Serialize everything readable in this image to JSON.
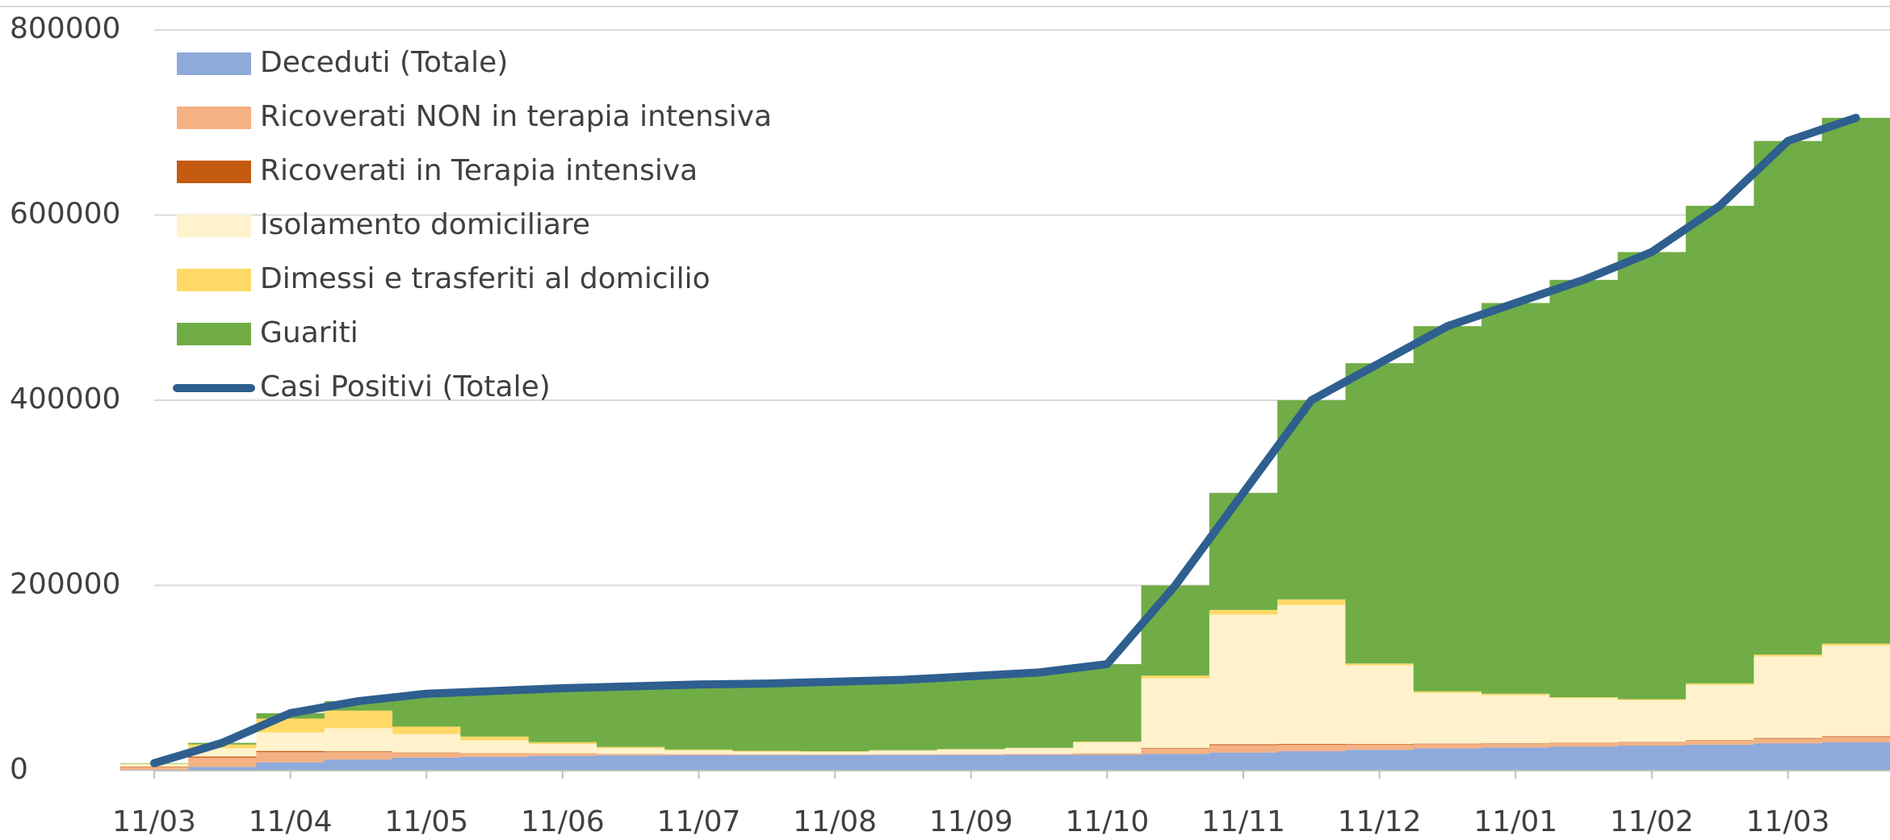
{
  "chart_data": {
    "type": "bar",
    "categories": [
      "11/03",
      null,
      "11/04",
      null,
      "11/05",
      null,
      "11/06",
      null,
      "11/07",
      null,
      "11/08",
      null,
      "11/09",
      null,
      "11/10",
      null,
      "11/11",
      null,
      "11/12",
      null,
      "11/01",
      null,
      "11/02",
      null,
      "11/03",
      null
    ],
    "ylim": [
      0,
      800000
    ],
    "yticks": [
      0,
      200000,
      400000,
      600000,
      800000
    ],
    "grid": true,
    "stacked": true,
    "legend": "top-left",
    "series": [
      {
        "name": "Deceduti (Totale)",
        "color": "#8eaadb",
        "values": [
          500,
          4000,
          9000,
          12000,
          14000,
          15000,
          16000,
          16500,
          16700,
          16800,
          16800,
          16900,
          16900,
          17000,
          17000,
          18000,
          19500,
          21000,
          22500,
          24000,
          25000,
          26000,
          27000,
          28000,
          29500,
          30500
        ]
      },
      {
        "name": "Ricoverati NON in terapia intensiva",
        "color": "#f4b183",
        "values": [
          3500,
          10000,
          11000,
          8000,
          5000,
          3500,
          2500,
          1500,
          1000,
          700,
          500,
          600,
          800,
          1000,
          1500,
          6000,
          8000,
          7000,
          5500,
          4500,
          4000,
          3800,
          3700,
          4200,
          5000,
          5800
        ]
      },
      {
        "name": "Ricoverati in Terapia intensiva",
        "color": "#c55a11",
        "values": [
          500,
          1200,
          1200,
          800,
          500,
          300,
          200,
          100,
          80,
          50,
          40,
          40,
          60,
          80,
          150,
          600,
          1000,
          900,
          700,
          600,
          500,
          450,
          400,
          500,
          700,
          800
        ]
      },
      {
        "name": "Isolamento domiciliare",
        "color": "#fff2cc",
        "values": [
          2500,
          9000,
          20000,
          25000,
          20000,
          14000,
          10000,
          6000,
          4000,
          3000,
          3000,
          4000,
          5000,
          6000,
          12000,
          75000,
          140000,
          150000,
          85000,
          55000,
          52000,
          48000,
          45000,
          60000,
          88000,
          98000
        ]
      },
      {
        "name": "Dimessi e trasferiti al domicilio",
        "color": "#ffd966",
        "values": [
          500,
          4000,
          15000,
          19000,
          8000,
          4000,
          2000,
          1500,
          1000,
          700,
          500,
          500,
          500,
          600,
          700,
          3000,
          5000,
          6000,
          2000,
          1500,
          1500,
          1000,
          1000,
          1500,
          2000,
          2000
        ]
      },
      {
        "name": "Guariti",
        "color": "#70ad47",
        "values": [
          500,
          1800,
          5800,
          10200,
          35500,
          49200,
          58300,
          65400,
          70220,
          72750,
          75160,
          75960,
          78740,
          81320,
          83650,
          97400,
          126500,
          215100,
          324300,
          394400,
          422000,
          450750,
          482900,
          515800,
          554800,
          567900
        ]
      },
      {
        "name": "Casi Positivi (Totale)",
        "color": "#2e5f8f",
        "type": "line",
        "values": [
          8000,
          30000,
          62000,
          75000,
          83000,
          86000,
          89000,
          91000,
          93000,
          94000,
          96000,
          98000,
          102000,
          106000,
          115000,
          200000,
          300000,
          400000,
          440000,
          480000,
          505000,
          530000,
          560000,
          610000,
          680000,
          705000
        ]
      }
    ]
  }
}
